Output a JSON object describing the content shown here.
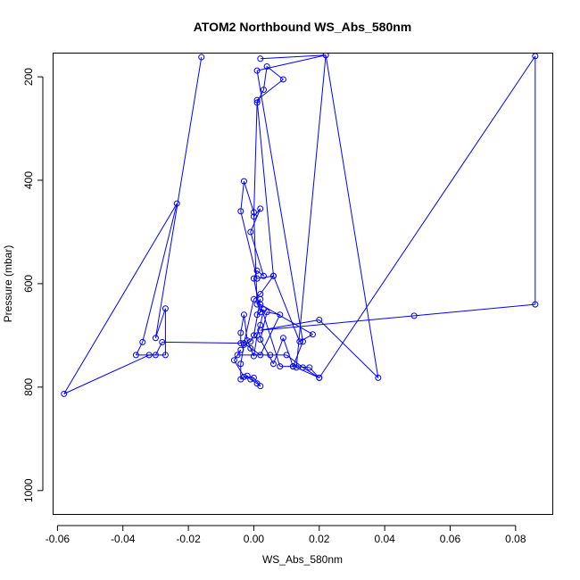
{
  "chart_data": {
    "type": "line",
    "title": "ATOM2 Northbound WS_Abs_580nm",
    "xlabel": "WS_Abs_580nm",
    "ylabel": "Pressure (mbar)",
    "xlim": [
      -0.0612,
      0.0915
    ],
    "ylim": [
      1047,
      155
    ],
    "y_reversed": true,
    "grid": false,
    "marker": "open-circle",
    "x_ticks": [
      -0.06,
      -0.04,
      -0.02,
      0.0,
      0.02,
      0.04,
      0.06,
      0.08
    ],
    "x_tick_labels": [
      "-0.06",
      "-0.04",
      "-0.02",
      "0.00",
      "0.02",
      "0.04",
      "0.06",
      "0.08"
    ],
    "y_ticks": [
      200,
      400,
      600,
      800,
      1000
    ],
    "y_tick_labels": [
      "200",
      "400",
      "600",
      "800",
      "1000"
    ],
    "series": [
      {
        "color": "#0000ff",
        "x": [
          -0.016,
          -0.03,
          -0.027,
          -0.027,
          -0.032,
          -0.058,
          -0.0235,
          -0.034,
          -0.036,
          -0.03,
          -0.028,
          -0.004,
          -0.004,
          -0.003,
          -0.002,
          -0.001,
          0.0,
          0.001,
          0.002,
          0.003,
          0.001,
          0.002,
          0.0,
          0.001,
          0.003,
          -0.001,
          0.002,
          0.0,
          0.001,
          0.003,
          0.004,
          0.009,
          0.001,
          0.006,
          0.002,
          0.0,
          -0.003,
          0.002,
          0.008,
          0.004,
          0.002,
          0.006,
          0.009,
          0.012,
          0.017,
          0.02,
          0.013,
          0.022,
          0.038,
          0.02,
          0.002,
          0.049,
          0.086,
          0.086,
          0.02,
          0.015,
          0.01,
          0.005,
          -0.005,
          -0.004,
          -0.006,
          -0.003,
          0.0,
          0.002,
          0.001,
          -0.001,
          -0.002,
          -0.004,
          -0.004,
          -0.003,
          -0.001,
          0.0,
          0.002,
          0.001,
          0.0,
          -0.003,
          -0.004,
          0.001,
          0.006,
          0.014,
          0.018,
          0.002,
          0.008,
          0.012,
          0.015,
          0.001,
          0.022,
          0.002
        ],
        "y": [
          162,
          705,
          648,
          738,
          738,
          813,
          445,
          713,
          738,
          738,
          713,
          715,
          695,
          660,
          710,
          725,
          740,
          700,
          680,
          650,
          660,
          655,
          590,
          575,
          585,
          500,
          455,
          470,
          250,
          225,
          180,
          205,
          245,
          585,
          620,
          630,
          715,
          738,
          660,
          655,
          708,
          755,
          705,
          760,
          762,
          782,
          762,
          158,
          782,
          670,
          690,
          662,
          640,
          160,
          782,
          762,
          738,
          738,
          738,
          728,
          748,
          780,
          782,
          798,
          793,
          785,
          778,
          785,
          755,
          718,
          712,
          700,
          630,
          640,
          462,
          402,
          460,
          590,
          585,
          712,
          698,
          640,
          760,
          760,
          712,
          188,
          158,
          165
        ]
      }
    ]
  }
}
